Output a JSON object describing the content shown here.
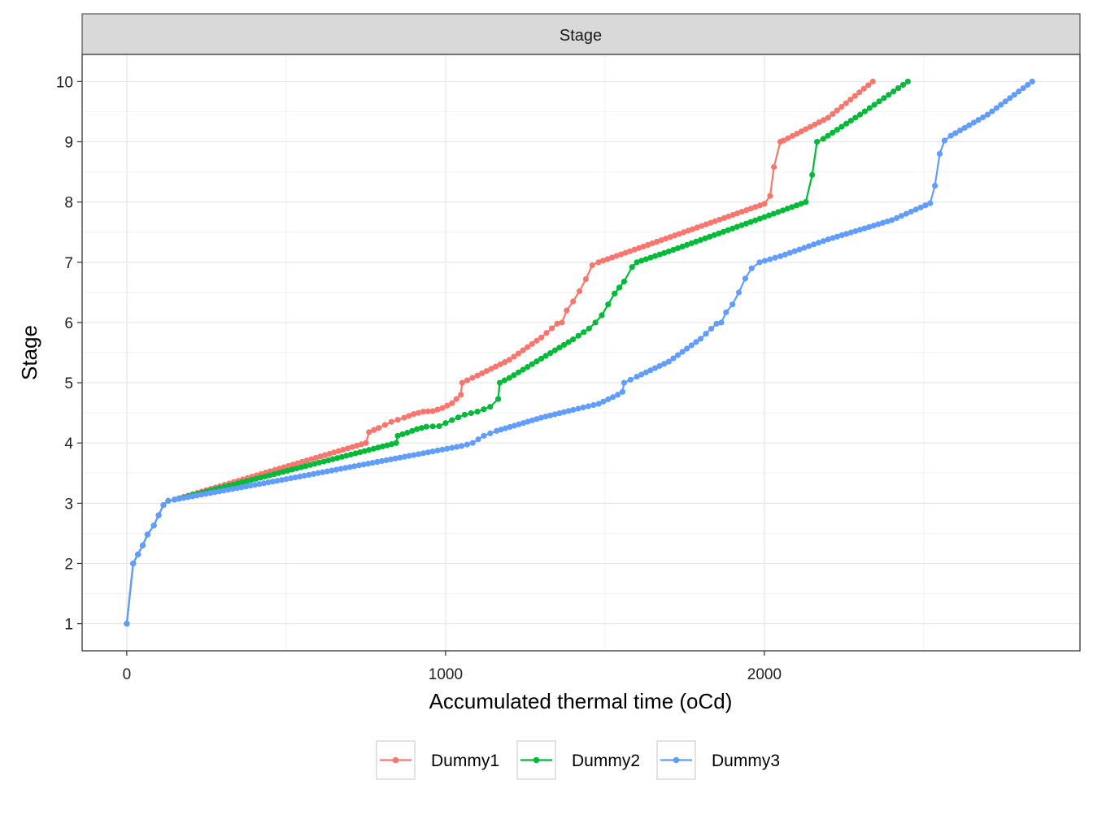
{
  "chart_data": {
    "type": "line",
    "facet_label": "Stage",
    "xlabel": "Accumulated thermal time (oCd)",
    "ylabel": "Stage",
    "xlim": [
      -140,
      2990
    ],
    "ylim": [
      0.55,
      10.45
    ],
    "x_ticks": [
      0,
      1000,
      2000
    ],
    "y_ticks": [
      1,
      2,
      3,
      4,
      5,
      6,
      7,
      8,
      9,
      10
    ],
    "grid": true,
    "legend_position": "bottom",
    "series": [
      {
        "name": "Dummy1",
        "color": "#F8766D",
        "points": [
          [
            0,
            1
          ],
          [
            20,
            2
          ],
          [
            35,
            2.15
          ],
          [
            50,
            2.3
          ],
          [
            65,
            2.48
          ],
          [
            85,
            2.63
          ],
          [
            100,
            2.8
          ],
          [
            115,
            2.97
          ],
          [
            130,
            3.04
          ],
          [
            150,
            3.06
          ],
          [
            750,
            4.0
          ],
          [
            760,
            4.18
          ],
          [
            790,
            4.25
          ],
          [
            830,
            4.35
          ],
          [
            870,
            4.42
          ],
          [
            900,
            4.48
          ],
          [
            930,
            4.52
          ],
          [
            960,
            4.53
          ],
          [
            990,
            4.58
          ],
          [
            1020,
            4.66
          ],
          [
            1048,
            4.8
          ],
          [
            1052,
            5.0
          ],
          [
            1100,
            5.12
          ],
          [
            1200,
            5.38
          ],
          [
            1300,
            5.75
          ],
          [
            1350,
            5.98
          ],
          [
            1365,
            6.0
          ],
          [
            1380,
            6.2
          ],
          [
            1400,
            6.35
          ],
          [
            1420,
            6.52
          ],
          [
            1440,
            6.72
          ],
          [
            1460,
            6.95
          ],
          [
            1480,
            7.0
          ],
          [
            2000,
            7.97
          ],
          [
            2018,
            8.1
          ],
          [
            2030,
            8.58
          ],
          [
            2050,
            9.0
          ],
          [
            2060,
            9.02
          ],
          [
            2200,
            9.4
          ],
          [
            2340,
            10.0
          ]
        ]
      },
      {
        "name": "Dummy2",
        "color": "#00BA38",
        "points": [
          [
            0,
            1
          ],
          [
            20,
            2
          ],
          [
            35,
            2.15
          ],
          [
            50,
            2.3
          ],
          [
            65,
            2.48
          ],
          [
            85,
            2.63
          ],
          [
            100,
            2.8
          ],
          [
            115,
            2.97
          ],
          [
            130,
            3.04
          ],
          [
            150,
            3.06
          ],
          [
            845,
            4.0
          ],
          [
            850,
            4.12
          ],
          [
            880,
            4.17
          ],
          [
            910,
            4.23
          ],
          [
            940,
            4.27
          ],
          [
            980,
            4.28
          ],
          [
            1020,
            4.38
          ],
          [
            1060,
            4.47
          ],
          [
            1100,
            4.52
          ],
          [
            1140,
            4.6
          ],
          [
            1165,
            4.73
          ],
          [
            1170,
            5.0
          ],
          [
            1200,
            5.08
          ],
          [
            1300,
            5.4
          ],
          [
            1400,
            5.72
          ],
          [
            1450,
            5.9
          ],
          [
            1470,
            6.0
          ],
          [
            1490,
            6.12
          ],
          [
            1510,
            6.3
          ],
          [
            1530,
            6.48
          ],
          [
            1560,
            6.68
          ],
          [
            1585,
            6.92
          ],
          [
            1600,
            7.0
          ],
          [
            1700,
            7.18
          ],
          [
            2000,
            7.75
          ],
          [
            2130,
            8.0
          ],
          [
            2150,
            8.45
          ],
          [
            2165,
            9.0
          ],
          [
            2185,
            9.05
          ],
          [
            2300,
            9.45
          ],
          [
            2450,
            10.0
          ]
        ]
      },
      {
        "name": "Dummy3",
        "color": "#619CFF",
        "points": [
          [
            0,
            1
          ],
          [
            20,
            2
          ],
          [
            35,
            2.15
          ],
          [
            50,
            2.3
          ],
          [
            65,
            2.48
          ],
          [
            85,
            2.63
          ],
          [
            100,
            2.8
          ],
          [
            115,
            2.97
          ],
          [
            130,
            3.04
          ],
          [
            150,
            3.06
          ],
          [
            500,
            3.4
          ],
          [
            900,
            3.8
          ],
          [
            1050,
            3.95
          ],
          [
            1085,
            4.0
          ],
          [
            1120,
            4.12
          ],
          [
            1160,
            4.2
          ],
          [
            1300,
            4.42
          ],
          [
            1400,
            4.55
          ],
          [
            1480,
            4.65
          ],
          [
            1540,
            4.8
          ],
          [
            1555,
            4.85
          ],
          [
            1560,
            5.0
          ],
          [
            1600,
            5.1
          ],
          [
            1700,
            5.35
          ],
          [
            1800,
            5.73
          ],
          [
            1850,
            5.98
          ],
          [
            1865,
            6.0
          ],
          [
            1880,
            6.17
          ],
          [
            1900,
            6.3
          ],
          [
            1920,
            6.5
          ],
          [
            1940,
            6.73
          ],
          [
            1960,
            6.9
          ],
          [
            1985,
            7.0
          ],
          [
            2050,
            7.1
          ],
          [
            2200,
            7.38
          ],
          [
            2400,
            7.7
          ],
          [
            2520,
            7.98
          ],
          [
            2535,
            8.27
          ],
          [
            2550,
            8.8
          ],
          [
            2565,
            9.02
          ],
          [
            2585,
            9.1
          ],
          [
            2700,
            9.45
          ],
          [
            2840,
            10.0
          ]
        ]
      }
    ]
  }
}
